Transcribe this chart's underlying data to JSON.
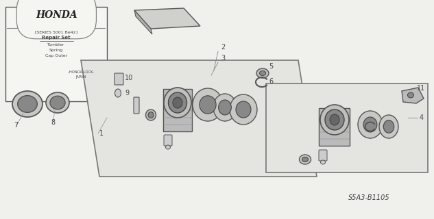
{
  "bg_color": "#f0f0ec",
  "part_number": "S5A3-B1105",
  "honda_label": "HONDA",
  "series_text": "[SERIES 5001 Be42]",
  "repair_text": "Repair Set",
  "tumbler_text": "Tumbler",
  "spring_text": "Spring",
  "cap_text": "Cap Outer",
  "honda_lock_text": "-HONDA LOCK-",
  "japan_text": "JAPAN",
  "part_labels": [
    "1",
    "2",
    "3",
    "4",
    "5",
    "6",
    "7",
    "8",
    "9",
    "10",
    "11"
  ],
  "line_color": "#555555",
  "dark_gray": "#444444",
  "mid_gray": "#888888",
  "light_gray": "#cccccc",
  "part_fill": "#bbbbbb",
  "ring_fill": "#aaaaaa"
}
